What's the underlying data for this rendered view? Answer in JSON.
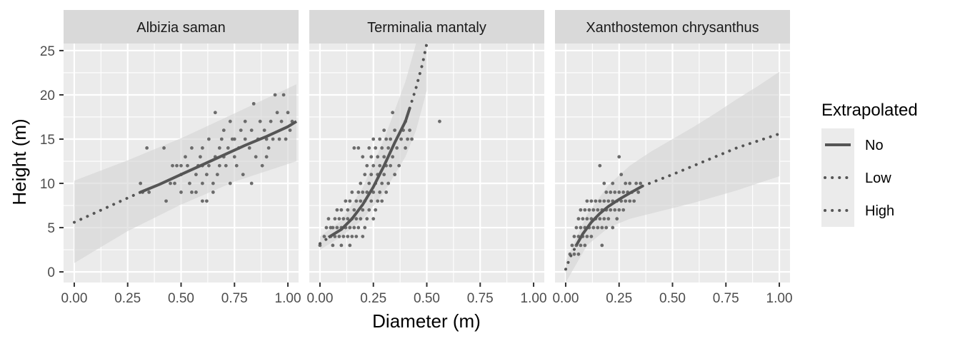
{
  "chart_data": {
    "type": "scatter",
    "xlabel": "Diameter (m)",
    "ylabel": "Height (m)",
    "xlim": [
      -0.05,
      1.05
    ],
    "ylim": [
      -1.2,
      25.8
    ],
    "x_ticks": [
      0.0,
      0.25,
      0.5,
      0.75,
      1.0
    ],
    "x_tick_labels": [
      "0.00",
      "0.25",
      "0.50",
      "0.75",
      "1.00"
    ],
    "y_ticks": [
      0,
      5,
      10,
      15,
      20,
      25
    ],
    "y_tick_labels": [
      "0",
      "5",
      "10",
      "15",
      "20",
      "25"
    ],
    "grid": true,
    "colors": {
      "panel_bg": "#ebebeb",
      "strip_bg": "#d9d9d9",
      "grid": "#ffffff",
      "point": "#6b6b6b",
      "line": "#555555",
      "ribbon": "#d3d3d3"
    },
    "legend": {
      "title": "Extrapolated",
      "placement": "right",
      "entries": [
        {
          "label": "No",
          "linetype": "solid"
        },
        {
          "label": "Low",
          "linetype": "dotted"
        },
        {
          "label": "High",
          "linetype": "dotted"
        }
      ]
    },
    "facets": [
      {
        "title": "Albizia saman",
        "fit": [
          {
            "extrapolated": "Low",
            "x": [
              0.0,
              0.1,
              0.2,
              0.31
            ],
            "y": [
              5.6,
              6.7,
              7.8,
              9.0
            ]
          },
          {
            "extrapolated": "No",
            "x": [
              0.31,
              0.4,
              0.5,
              0.6,
              0.7,
              0.8,
              0.9,
              1.0,
              1.04
            ],
            "y": [
              9.0,
              9.9,
              11.0,
              12.1,
              13.2,
              14.3,
              15.3,
              16.4,
              17.0
            ]
          }
        ],
        "ribbon": {
          "x": [
            0.0,
            0.25,
            0.5,
            0.75,
            1.04
          ],
          "lower": [
            1.0,
            4.6,
            7.6,
            10.2,
            12.5
          ],
          "upper": [
            10.3,
            12.6,
            15.1,
            17.9,
            21.2
          ]
        },
        "points": [
          [
            0.31,
            10
          ],
          [
            0.32,
            9
          ],
          [
            0.34,
            14
          ],
          [
            0.35,
            9
          ],
          [
            0.42,
            14
          ],
          [
            0.43,
            8
          ],
          [
            0.45,
            10
          ],
          [
            0.46,
            12
          ],
          [
            0.47,
            10
          ],
          [
            0.48,
            12
          ],
          [
            0.5,
            9
          ],
          [
            0.5,
            11
          ],
          [
            0.5,
            12
          ],
          [
            0.52,
            13
          ],
          [
            0.53,
            12
          ],
          [
            0.54,
            10
          ],
          [
            0.55,
            9
          ],
          [
            0.55,
            14
          ],
          [
            0.57,
            9
          ],
          [
            0.57,
            11
          ],
          [
            0.58,
            12
          ],
          [
            0.59,
            13
          ],
          [
            0.6,
            8
          ],
          [
            0.6,
            10
          ],
          [
            0.6,
            12
          ],
          [
            0.6,
            14
          ],
          [
            0.62,
            8
          ],
          [
            0.62,
            11
          ],
          [
            0.63,
            12
          ],
          [
            0.63,
            15
          ],
          [
            0.65,
            9
          ],
          [
            0.65,
            10
          ],
          [
            0.66,
            13
          ],
          [
            0.66,
            18
          ],
          [
            0.67,
            11
          ],
          [
            0.68,
            12
          ],
          [
            0.68,
            14
          ],
          [
            0.69,
            15
          ],
          [
            0.7,
            13
          ],
          [
            0.7,
            16
          ],
          [
            0.71,
            12
          ],
          [
            0.72,
            14
          ],
          [
            0.73,
            10
          ],
          [
            0.73,
            17
          ],
          [
            0.74,
            15
          ],
          [
            0.75,
            13
          ],
          [
            0.75,
            15
          ],
          [
            0.76,
            12
          ],
          [
            0.77,
            14
          ],
          [
            0.78,
            16
          ],
          [
            0.79,
            11
          ],
          [
            0.8,
            15
          ],
          [
            0.8,
            17
          ],
          [
            0.82,
            14
          ],
          [
            0.83,
            10
          ],
          [
            0.83,
            16
          ],
          [
            0.84,
            19
          ],
          [
            0.85,
            13
          ],
          [
            0.86,
            15
          ],
          [
            0.87,
            17
          ],
          [
            0.88,
            12
          ],
          [
            0.89,
            16
          ],
          [
            0.9,
            13
          ],
          [
            0.9,
            15
          ],
          [
            0.91,
            14
          ],
          [
            0.92,
            17
          ],
          [
            0.93,
            15
          ],
          [
            0.94,
            20
          ],
          [
            0.95,
            18
          ],
          [
            0.96,
            15
          ],
          [
            0.97,
            17
          ],
          [
            0.98,
            20
          ],
          [
            0.99,
            15
          ],
          [
            1.0,
            18
          ],
          [
            1.01,
            16
          ],
          [
            1.02,
            17
          ]
        ]
      },
      {
        "title": "Terminalia mantaly",
        "fit": [
          {
            "extrapolated": "Low",
            "x": [
              0.0,
              0.02,
              0.04
            ],
            "y": [
              3.2,
              3.5,
              3.9
            ]
          },
          {
            "extrapolated": "No",
            "x": [
              0.04,
              0.1,
              0.15,
              0.2,
              0.25,
              0.3,
              0.35,
              0.4,
              0.42
            ],
            "y": [
              3.9,
              4.8,
              6.0,
              7.6,
              9.6,
              12.0,
              14.6,
              17.0,
              18.5
            ]
          },
          {
            "extrapolated": "High",
            "x": [
              0.42,
              0.45,
              0.48,
              0.5
            ],
            "y": [
              18.5,
              20.8,
              23.5,
              25.8
            ]
          }
        ],
        "ribbon": {
          "x": [
            0.0,
            0.1,
            0.2,
            0.3,
            0.4,
            0.45,
            0.5
          ],
          "lower": [
            2.5,
            4.0,
            5.9,
            9.0,
            13.0,
            16.0,
            20.5
          ],
          "upper": [
            4.0,
            5.8,
            9.5,
            15.0,
            21.5,
            25.8,
            25.8
          ]
        },
        "points": [
          [
            0.0,
            3
          ],
          [
            0.02,
            4
          ],
          [
            0.03,
            5
          ],
          [
            0.04,
            6
          ],
          [
            0.05,
            4
          ],
          [
            0.05,
            5
          ],
          [
            0.06,
            3
          ],
          [
            0.06,
            5
          ],
          [
            0.07,
            4
          ],
          [
            0.07,
            6
          ],
          [
            0.08,
            5
          ],
          [
            0.08,
            7
          ],
          [
            0.09,
            4
          ],
          [
            0.09,
            6
          ],
          [
            0.1,
            3
          ],
          [
            0.1,
            5
          ],
          [
            0.1,
            7
          ],
          [
            0.11,
            4
          ],
          [
            0.11,
            6
          ],
          [
            0.12,
            5
          ],
          [
            0.12,
            8
          ],
          [
            0.13,
            4
          ],
          [
            0.13,
            6
          ],
          [
            0.13,
            7
          ],
          [
            0.14,
            3
          ],
          [
            0.14,
            5
          ],
          [
            0.14,
            8
          ],
          [
            0.15,
            4
          ],
          [
            0.15,
            6
          ],
          [
            0.15,
            9
          ],
          [
            0.16,
            5
          ],
          [
            0.16,
            7
          ],
          [
            0.16,
            14
          ],
          [
            0.17,
            4
          ],
          [
            0.17,
            6
          ],
          [
            0.17,
            8
          ],
          [
            0.18,
            5
          ],
          [
            0.18,
            9
          ],
          [
            0.18,
            14
          ],
          [
            0.19,
            6
          ],
          [
            0.19,
            8
          ],
          [
            0.19,
            10
          ],
          [
            0.2,
            4
          ],
          [
            0.2,
            7
          ],
          [
            0.2,
            9
          ],
          [
            0.2,
            13
          ],
          [
            0.21,
            5
          ],
          [
            0.21,
            8
          ],
          [
            0.21,
            11
          ],
          [
            0.22,
            6
          ],
          [
            0.22,
            9
          ],
          [
            0.22,
            12
          ],
          [
            0.23,
            7
          ],
          [
            0.23,
            10
          ],
          [
            0.23,
            14
          ],
          [
            0.24,
            8
          ],
          [
            0.24,
            11
          ],
          [
            0.24,
            13
          ],
          [
            0.25,
            6
          ],
          [
            0.25,
            9
          ],
          [
            0.25,
            12
          ],
          [
            0.25,
            15
          ],
          [
            0.26,
            7
          ],
          [
            0.26,
            10
          ],
          [
            0.26,
            14
          ],
          [
            0.27,
            8
          ],
          [
            0.27,
            11
          ],
          [
            0.27,
            13
          ],
          [
            0.28,
            9
          ],
          [
            0.28,
            12
          ],
          [
            0.28,
            15
          ],
          [
            0.29,
            8
          ],
          [
            0.29,
            10
          ],
          [
            0.29,
            14
          ],
          [
            0.3,
            11
          ],
          [
            0.3,
            13
          ],
          [
            0.3,
            16
          ],
          [
            0.31,
            9
          ],
          [
            0.31,
            12
          ],
          [
            0.31,
            15
          ],
          [
            0.32,
            10
          ],
          [
            0.32,
            14
          ],
          [
            0.33,
            12
          ],
          [
            0.33,
            15
          ],
          [
            0.34,
            13
          ],
          [
            0.34,
            18
          ],
          [
            0.35,
            11
          ],
          [
            0.35,
            16
          ],
          [
            0.36,
            14
          ],
          [
            0.37,
            12
          ],
          [
            0.38,
            15
          ],
          [
            0.39,
            16
          ],
          [
            0.4,
            14
          ],
          [
            0.4,
            17
          ],
          [
            0.41,
            15
          ],
          [
            0.42,
            16
          ],
          [
            0.43,
            15
          ],
          [
            0.56,
            17
          ]
        ]
      },
      {
        "title": "Xanthostemon chrysanthus",
        "fit": [
          {
            "extrapolated": "Low",
            "x": [
              0.0,
              0.02,
              0.05
            ],
            "y": [
              0.3,
              1.6,
              3.0
            ]
          },
          {
            "extrapolated": "No",
            "x": [
              0.05,
              0.08,
              0.12,
              0.16,
              0.2,
              0.25,
              0.3,
              0.36
            ],
            "y": [
              3.0,
              4.3,
              5.6,
              6.6,
              7.4,
              8.2,
              8.9,
              9.7
            ]
          },
          {
            "extrapolated": "High",
            "x": [
              0.36,
              0.5,
              0.6,
              0.7,
              0.8,
              0.9,
              1.0
            ],
            "y": [
              9.7,
              11.0,
              12.0,
              13.0,
              14.0,
              14.8,
              15.6
            ]
          }
        ],
        "ribbon": {
          "x": [
            0.0,
            0.1,
            0.2,
            0.3,
            0.4,
            0.5,
            0.6,
            0.7,
            0.8,
            0.9,
            1.0
          ],
          "lower": [
            -1.2,
            3.0,
            5.0,
            6.0,
            6.6,
            7.2,
            7.8,
            8.5,
            9.2,
            10.0,
            10.8
          ],
          "upper": [
            1.2,
            6.5,
            9.8,
            12.0,
            13.6,
            15.0,
            16.4,
            17.9,
            19.5,
            21.0,
            22.6
          ]
        },
        "points": [
          [
            0.02,
            2
          ],
          [
            0.03,
            3
          ],
          [
            0.04,
            2
          ],
          [
            0.04,
            4
          ],
          [
            0.05,
            3
          ],
          [
            0.05,
            5
          ],
          [
            0.06,
            2
          ],
          [
            0.06,
            4
          ],
          [
            0.06,
            6
          ],
          [
            0.07,
            3
          ],
          [
            0.07,
            5
          ],
          [
            0.07,
            7
          ],
          [
            0.08,
            4
          ],
          [
            0.08,
            6
          ],
          [
            0.09,
            3
          ],
          [
            0.09,
            5
          ],
          [
            0.09,
            7
          ],
          [
            0.1,
            4
          ],
          [
            0.1,
            6
          ],
          [
            0.1,
            8
          ],
          [
            0.11,
            5
          ],
          [
            0.11,
            7
          ],
          [
            0.12,
            4
          ],
          [
            0.12,
            6
          ],
          [
            0.12,
            8
          ],
          [
            0.13,
            5
          ],
          [
            0.13,
            7
          ],
          [
            0.14,
            6
          ],
          [
            0.14,
            8
          ],
          [
            0.15,
            5
          ],
          [
            0.15,
            7
          ],
          [
            0.16,
            6
          ],
          [
            0.16,
            8
          ],
          [
            0.16,
            12
          ],
          [
            0.17,
            3
          ],
          [
            0.17,
            5
          ],
          [
            0.17,
            7
          ],
          [
            0.18,
            6
          ],
          [
            0.18,
            8
          ],
          [
            0.18,
            10
          ],
          [
            0.19,
            5
          ],
          [
            0.19,
            7
          ],
          [
            0.19,
            9
          ],
          [
            0.2,
            6
          ],
          [
            0.2,
            8
          ],
          [
            0.21,
            7
          ],
          [
            0.21,
            9
          ],
          [
            0.22,
            5
          ],
          [
            0.22,
            8
          ],
          [
            0.22,
            10
          ],
          [
            0.23,
            7
          ],
          [
            0.23,
            9
          ],
          [
            0.24,
            6
          ],
          [
            0.24,
            8
          ],
          [
            0.25,
            7
          ],
          [
            0.25,
            9
          ],
          [
            0.25,
            13
          ],
          [
            0.26,
            8
          ],
          [
            0.26,
            11
          ],
          [
            0.27,
            7
          ],
          [
            0.27,
            9
          ],
          [
            0.28,
            8
          ],
          [
            0.28,
            10
          ],
          [
            0.29,
            9
          ],
          [
            0.3,
            8
          ],
          [
            0.3,
            10
          ],
          [
            0.31,
            9
          ],
          [
            0.32,
            8
          ],
          [
            0.33,
            10
          ],
          [
            0.34,
            9
          ],
          [
            0.35,
            10
          ]
        ]
      }
    ]
  }
}
